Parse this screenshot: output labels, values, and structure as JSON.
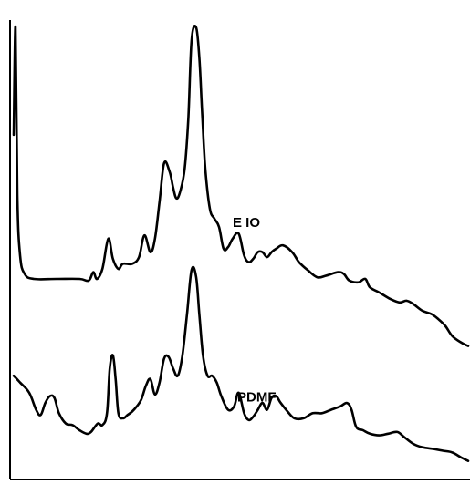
{
  "chart_data": {
    "type": "line",
    "title": "",
    "xlabel": "",
    "ylabel": "",
    "grid": false,
    "legend": "none",
    "xlim": [
      0,
      100
    ],
    "ylim": [
      0,
      100
    ],
    "line_color": "#000000",
    "series": [
      {
        "name": "E IO",
        "label_at": [
          48.5,
          40.5
        ],
        "points": [
          [
            0.6,
            68
          ],
          [
            1.0,
            100
          ],
          [
            1.4,
            50
          ],
          [
            2.0,
            32
          ],
          [
            3.0,
            26.5
          ],
          [
            5.0,
            25
          ],
          [
            10.0,
            25
          ],
          [
            15.0,
            25
          ],
          [
            17.0,
            24.5
          ],
          [
            18.0,
            27
          ],
          [
            18.8,
            25
          ],
          [
            20.0,
            28
          ],
          [
            21.3,
            37
          ],
          [
            22.3,
            31
          ],
          [
            23.5,
            28
          ],
          [
            24.5,
            29.5
          ],
          [
            26.5,
            29.5
          ],
          [
            28.0,
            31.5
          ],
          [
            29.2,
            38
          ],
          [
            30.5,
            33
          ],
          [
            31.5,
            37
          ],
          [
            32.5,
            48
          ],
          [
            33.5,
            59.5
          ],
          [
            34.7,
            57
          ],
          [
            35.5,
            52
          ],
          [
            36.2,
            49
          ],
          [
            37.0,
            51
          ],
          [
            38.0,
            58
          ],
          [
            38.8,
            73
          ],
          [
            39.5,
            96
          ],
          [
            40.5,
            100
          ],
          [
            41.2,
            91
          ],
          [
            41.8,
            75
          ],
          [
            42.5,
            58
          ],
          [
            43.5,
            46
          ],
          [
            44.5,
            43
          ],
          [
            45.5,
            40.5
          ],
          [
            46.5,
            34
          ],
          [
            47.5,
            34.5
          ],
          [
            48.5,
            37
          ],
          [
            49.8,
            38.5
          ],
          [
            51.0,
            32
          ],
          [
            52.0,
            30
          ],
          [
            53.0,
            31
          ],
          [
            54.0,
            33
          ],
          [
            55.0,
            33
          ],
          [
            56.0,
            31.5
          ],
          [
            57.0,
            33
          ],
          [
            58.0,
            34
          ],
          [
            59.5,
            35
          ],
          [
            61.5,
            33
          ],
          [
            63.0,
            30
          ],
          [
            65.0,
            27.5
          ],
          [
            67.0,
            25.5
          ],
          [
            69.0,
            26
          ],
          [
            71.5,
            27
          ],
          [
            72.8,
            26.5
          ],
          [
            74.0,
            24.5
          ],
          [
            76.0,
            24
          ],
          [
            77.5,
            25
          ],
          [
            78.5,
            22.5
          ],
          [
            80.5,
            21
          ],
          [
            83.0,
            19
          ],
          [
            85.0,
            18
          ],
          [
            86.5,
            18.5
          ],
          [
            88.0,
            17.5
          ],
          [
            90.0,
            15.5
          ],
          [
            92.0,
            14.5
          ],
          [
            93.5,
            13
          ],
          [
            95.0,
            11
          ],
          [
            96.5,
            8
          ],
          [
            98.5,
            6
          ],
          [
            100.0,
            5
          ]
        ]
      },
      {
        "name": "PDMF",
        "label_at": [
          49.5,
          12.5
        ],
        "points": [
          [
            0.6,
            20
          ],
          [
            2.0,
            18
          ],
          [
            4.0,
            15
          ],
          [
            5.5,
            10
          ],
          [
            6.5,
            8.5
          ],
          [
            7.5,
            12
          ],
          [
            8.5,
            14
          ],
          [
            9.5,
            13.5
          ],
          [
            10.5,
            9
          ],
          [
            12.0,
            6
          ],
          [
            13.5,
            5.5
          ],
          [
            15.0,
            4
          ],
          [
            16.5,
            3
          ],
          [
            17.5,
            3.5
          ],
          [
            19.0,
            6
          ],
          [
            20.0,
            5.5
          ],
          [
            21.0,
            9
          ],
          [
            21.6,
            22
          ],
          [
            22.3,
            26
          ],
          [
            22.9,
            19
          ],
          [
            23.5,
            9
          ],
          [
            24.5,
            7.5
          ],
          [
            25.5,
            8.5
          ],
          [
            26.5,
            9.5
          ],
          [
            27.5,
            11
          ],
          [
            28.5,
            13
          ],
          [
            29.5,
            17
          ],
          [
            30.5,
            19
          ],
          [
            31.5,
            14.5
          ],
          [
            32.5,
            18
          ],
          [
            33.5,
            25
          ],
          [
            34.5,
            25.5
          ],
          [
            35.5,
            22
          ],
          [
            36.5,
            20
          ],
          [
            37.5,
            26
          ],
          [
            38.5,
            38
          ],
          [
            39.5,
            51
          ],
          [
            40.5,
            49
          ],
          [
            41.2,
            38
          ],
          [
            42.0,
            26
          ],
          [
            43.0,
            20
          ],
          [
            44.0,
            20
          ],
          [
            45.0,
            18
          ],
          [
            46.0,
            14
          ],
          [
            47.5,
            10
          ],
          [
            48.8,
            11
          ],
          [
            49.8,
            15
          ],
          [
            51.0,
            9
          ],
          [
            52.0,
            7
          ],
          [
            53.0,
            8
          ],
          [
            54.0,
            10
          ],
          [
            55.0,
            12
          ],
          [
            56.0,
            10
          ],
          [
            57.0,
            13.5
          ],
          [
            58.0,
            14
          ],
          [
            59.0,
            12
          ],
          [
            60.5,
            9.5
          ],
          [
            62.0,
            7.5
          ],
          [
            64.0,
            7.5
          ],
          [
            66.0,
            9
          ],
          [
            68.0,
            9
          ],
          [
            70.0,
            10
          ],
          [
            72.0,
            11
          ],
          [
            73.5,
            12
          ],
          [
            74.5,
            10
          ],
          [
            75.5,
            5
          ],
          [
            77.0,
            4
          ],
          [
            78.5,
            3
          ],
          [
            80.5,
            2.5
          ],
          [
            82.5,
            3
          ],
          [
            84.5,
            3.5
          ],
          [
            86.0,
            2
          ],
          [
            88.0,
            0
          ],
          [
            90.0,
            -1
          ],
          [
            92.5,
            -1.5
          ],
          [
            94.5,
            -2
          ],
          [
            96.5,
            -2.5
          ],
          [
            98.5,
            -4
          ],
          [
            100.0,
            -5
          ]
        ]
      }
    ]
  }
}
